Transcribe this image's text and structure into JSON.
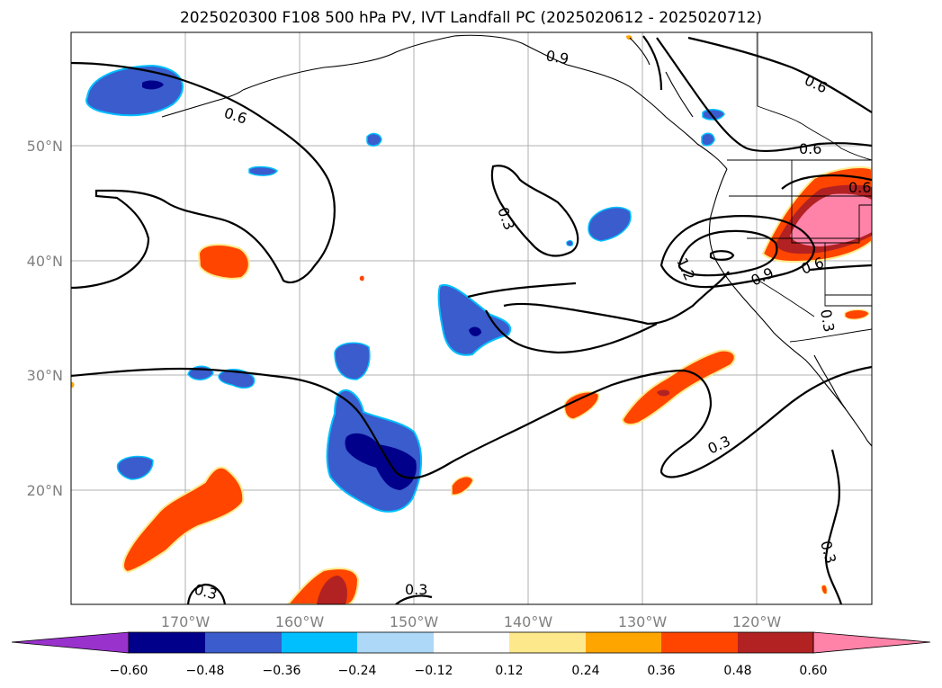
{
  "title": "2025020300 F108 500 hPa PV, IVT Landfall PC (2025020612 - 2025020712)",
  "map": {
    "longitude_labels": [
      "170°W",
      "160°W",
      "150°W",
      "140°W",
      "130°W",
      "120°W"
    ],
    "latitude_labels": [
      "50°N",
      "40°N",
      "30°N",
      "20°N"
    ],
    "contour_labels": [
      "0.9",
      "0.6",
      "0.6",
      "0.6",
      "0.3",
      "1.2",
      "0.9",
      "0.6",
      "0.3",
      "0.3",
      "0.3",
      "0.3",
      "0.3",
      "0.6"
    ],
    "colors": {
      "neg_060": "#9932cc",
      "neg_048": "#00008b",
      "neg_036": "#3a5ccc",
      "neg_024": "#00bfff",
      "neg_012": "#add8f7",
      "pos_012": "#fde98b",
      "pos_024": "#ffa500",
      "pos_036": "#ff4500",
      "pos_048": "#b22222",
      "pos_060": "#ff82a8"
    }
  },
  "colorbar": {
    "tick_labels": [
      "−0.60",
      "−0.48",
      "−0.36",
      "−0.24",
      "−0.12",
      "0.12",
      "0.24",
      "0.36",
      "0.48",
      "0.60"
    ]
  }
}
